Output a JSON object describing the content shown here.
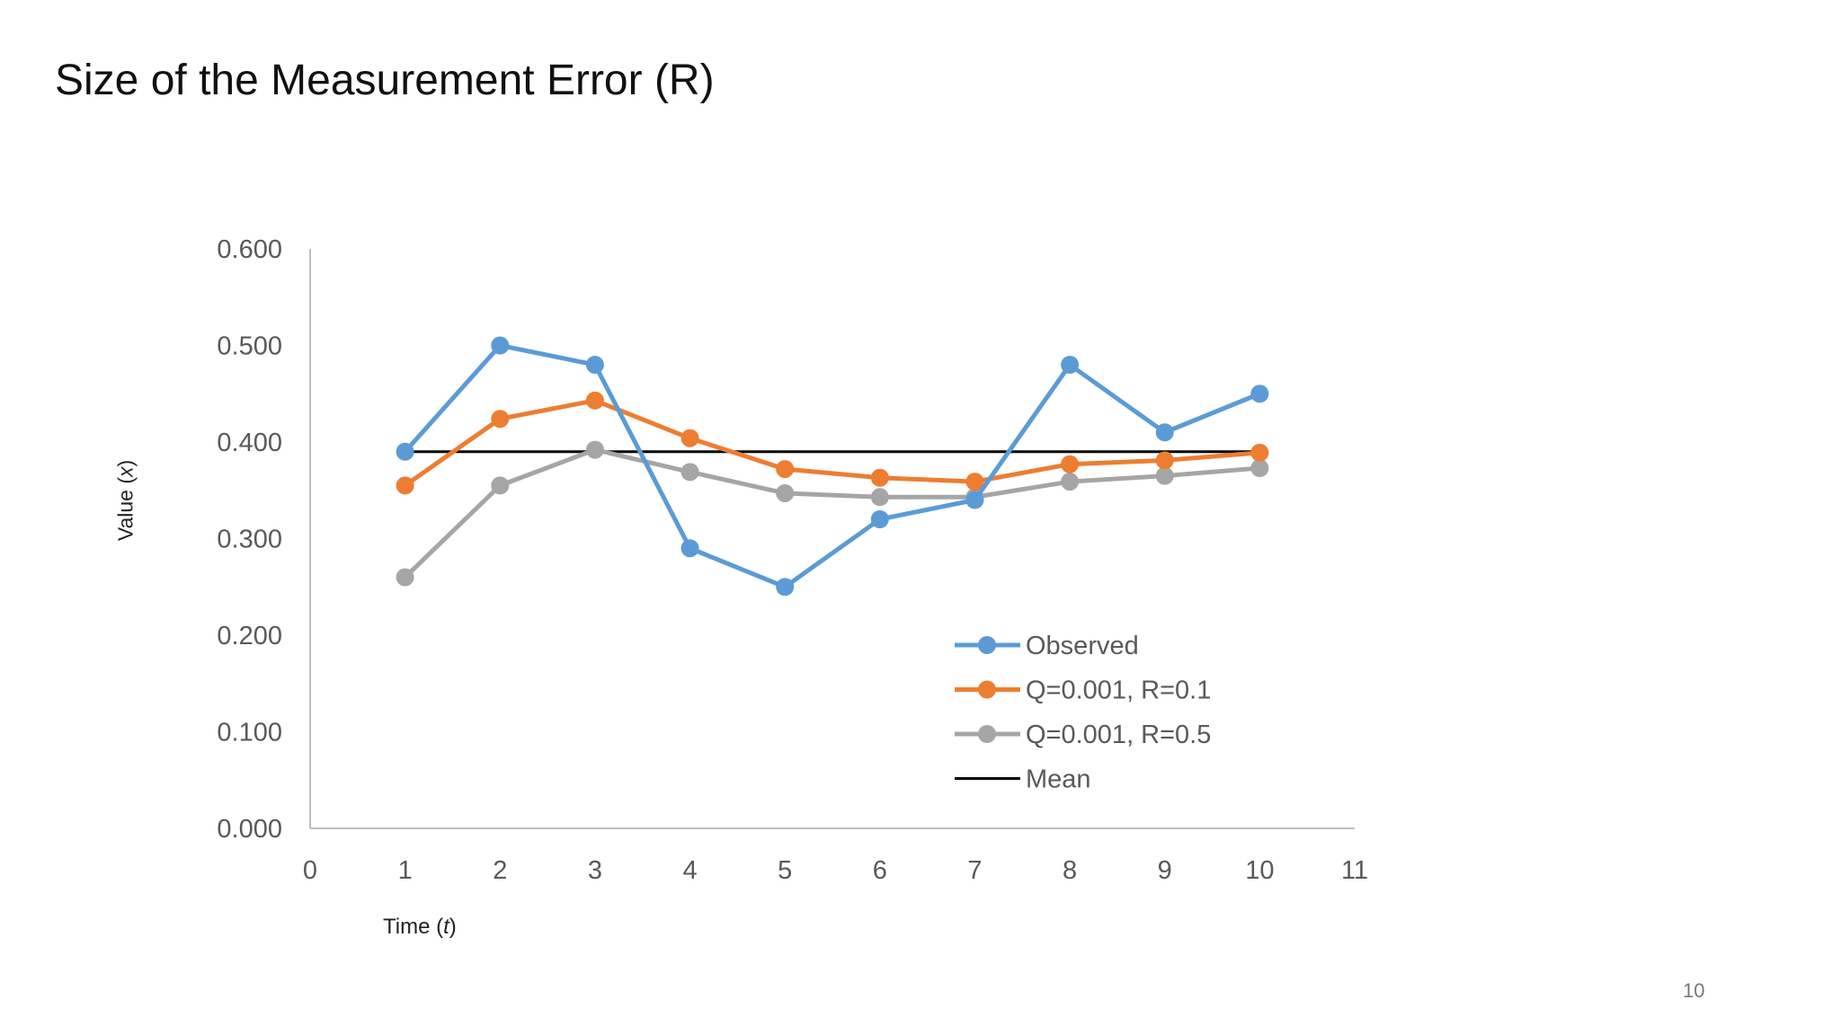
{
  "slide": {
    "title": "Size of the Measurement Error (R)",
    "page_number": "10"
  },
  "chart_data": {
    "type": "line",
    "title": "",
    "xlabel_prefix": "Time (",
    "xlabel_var": "t",
    "xlabel_suffix": ")",
    "ylabel_prefix": "Value (",
    "ylabel_var": "x",
    "ylabel_suffix": ")",
    "xlim": [
      0,
      11
    ],
    "ylim": [
      0,
      0.6
    ],
    "x_ticks": [
      "0",
      "1",
      "2",
      "3",
      "4",
      "5",
      "6",
      "7",
      "8",
      "9",
      "10",
      "11"
    ],
    "y_ticks": [
      "0.000",
      "0.100",
      "0.200",
      "0.300",
      "0.400",
      "0.500",
      "0.600"
    ],
    "grid": false,
    "legend_position": "bottom-right",
    "x": [
      1,
      2,
      3,
      4,
      5,
      6,
      7,
      8,
      9,
      10
    ],
    "series": [
      {
        "name": "Observed",
        "color": "#5B9BD5",
        "markers": true,
        "values": [
          0.39,
          0.5,
          0.48,
          0.29,
          0.25,
          0.32,
          0.34,
          0.48,
          0.41,
          0.45
        ]
      },
      {
        "name": "Q=0.001, R=0.1",
        "color": "#ED7D31",
        "markers": true,
        "values": [
          0.355,
          0.424,
          0.443,
          0.404,
          0.372,
          0.363,
          0.359,
          0.377,
          0.381,
          0.389
        ]
      },
      {
        "name": "Q=0.001, R=0.5",
        "color": "#A5A5A5",
        "markers": true,
        "values": [
          0.26,
          0.355,
          0.392,
          0.369,
          0.347,
          0.343,
          0.343,
          0.359,
          0.365,
          0.373
        ]
      },
      {
        "name": "Mean",
        "color": "#000000",
        "markers": false,
        "values": [
          0.39,
          0.39,
          0.39,
          0.39,
          0.39,
          0.39,
          0.39,
          0.39,
          0.39,
          0.39
        ]
      }
    ]
  }
}
